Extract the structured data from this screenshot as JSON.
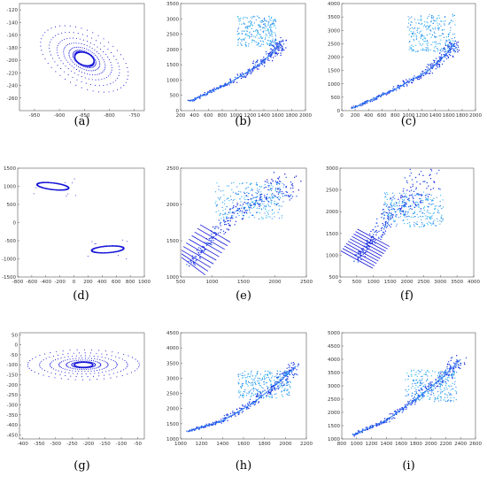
{
  "colors": {
    "dark_blue": "#1515d8",
    "mid_blue": "#1f74f0",
    "light_blue": "#27c6ec"
  },
  "chart_data": [
    {
      "caption": "(a)",
      "type": "scatter",
      "x_ticks": [
        "-950",
        "-900",
        "-850",
        "-800",
        "-750"
      ],
      "y_ticks": [
        "-120",
        "-140",
        "-160",
        "-180",
        "-200",
        "-220",
        "-240",
        "-260"
      ],
      "xlim": [
        -980,
        -730
      ],
      "ylim": [
        -280,
        -110
      ],
      "pattern": "ellipse",
      "series": [
        {
          "color": "dark_blue",
          "center": [
            -850,
            -198
          ],
          "radii": [
            20,
            10
          ],
          "outer_radii": [
            92,
            45
          ],
          "tilt": -0.35
        }
      ]
    },
    {
      "caption": "(b)",
      "type": "scatter",
      "x_ticks": [
        "200",
        "400",
        "600",
        "800",
        "1000",
        "1200",
        "1400",
        "1600",
        "1800",
        "2000"
      ],
      "y_ticks": [
        "0",
        "500",
        "1000",
        "1500",
        "2000",
        "2500",
        "3000",
        "3500"
      ],
      "xlim": [
        200,
        2000
      ],
      "ylim": [
        0,
        3500
      ],
      "pattern": "trajectory",
      "series": [
        {
          "color": "mid_blue",
          "path": [
            [
              330,
              300
            ],
            [
              900,
              900
            ],
            [
              1300,
              1450
            ],
            [
              1560,
              1950
            ],
            [
              1650,
              2250
            ]
          ],
          "cloud": [
            1300,
            2600,
            280,
            500
          ]
        }
      ]
    },
    {
      "caption": "(c)",
      "type": "scatter",
      "x_ticks": [
        "0",
        "200",
        "400",
        "600",
        "800",
        "1000",
        "1200",
        "1400",
        "1600",
        "1800",
        "2000"
      ],
      "y_ticks": [
        "0",
        "500",
        "1000",
        "1500",
        "2000",
        "2500",
        "3000",
        "3500",
        "4000"
      ],
      "xlim": [
        0,
        2000
      ],
      "ylim": [
        0,
        4000
      ],
      "pattern": "trajectory",
      "series": [
        {
          "color": "light_blue",
          "path": [
            [
              150,
              80
            ],
            [
              800,
              800
            ],
            [
              1300,
              1500
            ],
            [
              1560,
              2100
            ],
            [
              1680,
              2500
            ]
          ],
          "cloud": [
            1350,
            2900,
            360,
            700
          ]
        }
      ]
    },
    {
      "caption": "(d)",
      "type": "scatter",
      "x_ticks": [
        "-800",
        "-600",
        "-400",
        "-200",
        "0",
        "200",
        "400",
        "600",
        "800",
        "1000"
      ],
      "y_ticks": [
        "-1500",
        "-1000",
        "-500",
        "0",
        "500",
        "1000",
        "1500"
      ],
      "xlim": [
        -800,
        1000
      ],
      "ylim": [
        -1500,
        1500
      ],
      "pattern": "two-rings",
      "series": [
        {
          "color": "dark_blue",
          "center": [
            -300,
            1000
          ],
          "radii": [
            230,
            90
          ],
          "tilt": -0.25
        },
        {
          "color": "dark_blue",
          "center": [
            480,
            -740
          ],
          "radii": [
            230,
            90
          ],
          "tilt": 0.15
        }
      ]
    },
    {
      "caption": "(e)",
      "type": "scatter",
      "x_ticks": [
        "500",
        "1000",
        "1500",
        "2000",
        "2500"
      ],
      "y_ticks": [
        "1000",
        "1500",
        "2000",
        "2500"
      ],
      "xlim": [
        500,
        2500
      ],
      "ylim": [
        1000,
        2500
      ],
      "pattern": "lattice",
      "series": [
        {
          "color": "light_blue",
          "path": [
            [
              650,
              1150
            ],
            [
              1050,
              1600
            ],
            [
              1450,
              1950
            ],
            [
              1900,
              2150
            ],
            [
              2300,
              2300
            ]
          ],
          "cloud": [
            1600,
            2050,
            550,
            250
          ]
        }
      ]
    },
    {
      "caption": "(f)",
      "type": "scatter",
      "x_ticks": [
        "0",
        "500",
        "1000",
        "1500",
        "2000",
        "2500",
        "3000",
        "3500",
        "4000"
      ],
      "y_ticks": [
        "500",
        "1000",
        "1500",
        "2000",
        "2500",
        "3000"
      ],
      "xlim": [
        0,
        4000
      ],
      "ylim": [
        500,
        3000
      ],
      "pattern": "lattice",
      "series": [
        {
          "color": "light_blue",
          "path": [
            [
              500,
              900
            ],
            [
              1000,
              1400
            ],
            [
              1500,
              1950
            ],
            [
              2200,
              2300
            ],
            [
              2600,
              2800
            ]
          ],
          "cloud": [
            2200,
            2050,
            900,
            400
          ]
        }
      ]
    },
    {
      "caption": "(g)",
      "type": "scatter",
      "x_ticks": [
        "-400",
        "-350",
        "-300",
        "-250",
        "-200",
        "-150",
        "-100",
        "-50"
      ],
      "y_ticks": [
        "50",
        "0",
        "-50",
        "-100",
        "-150",
        "-200",
        "-250",
        "-300",
        "-350",
        "-400",
        "-450"
      ],
      "xlim": [
        -410,
        -30
      ],
      "ylim": [
        -470,
        60
      ],
      "pattern": "ellipse",
      "series": [
        {
          "color": "dark_blue",
          "center": [
            -215,
            -100
          ],
          "radii": [
            28,
            13
          ],
          "outer_radii": [
            170,
            75
          ],
          "tilt": 0
        }
      ]
    },
    {
      "caption": "(h)",
      "type": "scatter",
      "x_ticks": [
        "1000",
        "1200",
        "1400",
        "1600",
        "1800",
        "2000",
        "2200"
      ],
      "y_ticks": [
        "1000",
        "1500",
        "2000",
        "2500",
        "3000",
        "3500",
        "4000",
        "4500"
      ],
      "xlim": [
        1000,
        2200
      ],
      "ylim": [
        1000,
        4500
      ],
      "pattern": "trajectory",
      "series": [
        {
          "color": "light_blue",
          "path": [
            [
              1070,
              1250
            ],
            [
              1400,
              1600
            ],
            [
              1700,
              2200
            ],
            [
              1950,
              2900
            ],
            [
              2100,
              3400
            ]
          ],
          "cloud": [
            1800,
            2800,
            250,
            450
          ]
        }
      ]
    },
    {
      "caption": "(i)",
      "type": "scatter",
      "x_ticks": [
        "800",
        "1000",
        "1200",
        "1400",
        "1600",
        "1800",
        "2000",
        "2200",
        "2400",
        "2600"
      ],
      "y_ticks": [
        "1000",
        "1500",
        "2000",
        "2500",
        "3000",
        "3500",
        "4000",
        "4500",
        "5000"
      ],
      "xlim": [
        800,
        2600
      ],
      "ylim": [
        1000,
        5000
      ],
      "pattern": "trajectory",
      "series": [
        {
          "color": "light_blue",
          "path": [
            [
              950,
              1150
            ],
            [
              1400,
              1700
            ],
            [
              1800,
              2500
            ],
            [
              2150,
              3300
            ],
            [
              2400,
              4000
            ]
          ],
          "cloud": [
            2000,
            3000,
            350,
            600
          ]
        }
      ]
    }
  ]
}
